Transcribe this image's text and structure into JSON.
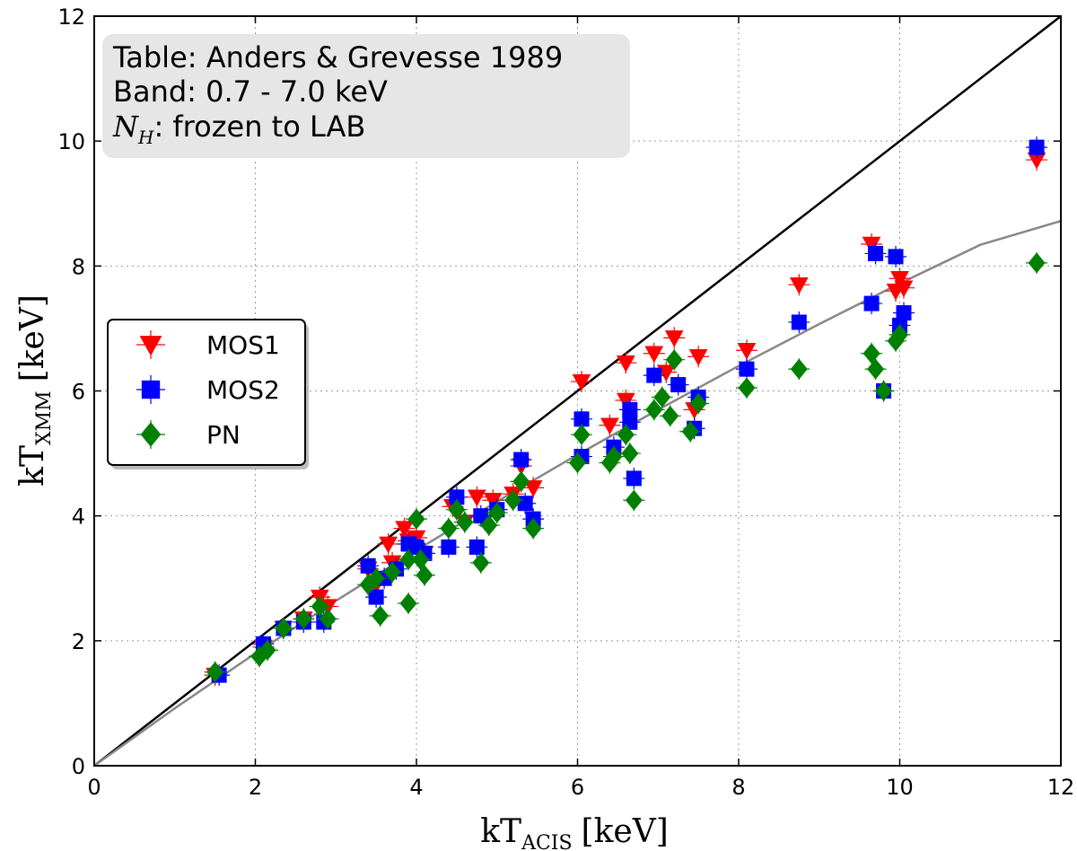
{
  "chart_data": {
    "type": "scatter",
    "xlabel": {
      "main": "kT",
      "sub": "ACIS",
      "unit": "[keV]"
    },
    "ylabel": {
      "main": "kT",
      "sub": "XMM",
      "unit": "[keV]"
    },
    "xlim": [
      0,
      12
    ],
    "ylim": [
      0,
      12
    ],
    "xticks": [
      "0",
      "2",
      "4",
      "6",
      "8",
      "10",
      "12"
    ],
    "yticks": [
      "0",
      "2",
      "4",
      "6",
      "8",
      "10",
      "12"
    ],
    "grid": true,
    "legend_position": "center-left",
    "annotation": {
      "line1": "Table: Anders & Grevesse 1989",
      "line2": "Band: 0.7 - 7.0 keV",
      "line3_symbol": "N",
      "line3_sub": "H",
      "line3_text": ": frozen to LAB"
    },
    "reference_lines": [
      {
        "kind": "identity",
        "color": "#000000",
        "points": [
          [
            0,
            0
          ],
          [
            12,
            12
          ]
        ]
      },
      {
        "kind": "fit",
        "color": "#888888",
        "points": [
          [
            0,
            0
          ],
          [
            1,
            0.92
          ],
          [
            2,
            1.8
          ],
          [
            3,
            2.64
          ],
          [
            4,
            3.45
          ],
          [
            5,
            4.23
          ],
          [
            6,
            4.98
          ],
          [
            7,
            5.7
          ],
          [
            8,
            6.4
          ],
          [
            9,
            7.07
          ],
          [
            10,
            7.72
          ],
          [
            11,
            8.34
          ],
          [
            12,
            8.72
          ]
        ]
      }
    ],
    "series": [
      {
        "name": "MOS1",
        "marker": "triangle-down",
        "color": "#ff0000",
        "points": [
          {
            "x": 1.5,
            "y": 1.45
          },
          {
            "x": 2.1,
            "y": 1.9
          },
          {
            "x": 2.35,
            "y": 2.2
          },
          {
            "x": 2.6,
            "y": 2.35
          },
          {
            "x": 2.8,
            "y": 2.7
          },
          {
            "x": 2.9,
            "y": 2.55
          },
          {
            "x": 3.4,
            "y": 3.15
          },
          {
            "x": 3.5,
            "y": 2.9
          },
          {
            "x": 3.65,
            "y": 3.55
          },
          {
            "x": 3.7,
            "y": 3.25
          },
          {
            "x": 3.85,
            "y": 3.8
          },
          {
            "x": 3.9,
            "y": 3.6
          },
          {
            "x": 4.0,
            "y": 3.65
          },
          {
            "x": 4.1,
            "y": 3.4
          },
          {
            "x": 4.45,
            "y": 4.15
          },
          {
            "x": 4.6,
            "y": 3.9
          },
          {
            "x": 4.75,
            "y": 4.3
          },
          {
            "x": 4.95,
            "y": 4.25
          },
          {
            "x": 5.2,
            "y": 4.35
          },
          {
            "x": 5.3,
            "y": 4.8
          },
          {
            "x": 5.45,
            "y": 4.45
          },
          {
            "x": 6.05,
            "y": 6.15
          },
          {
            "x": 6.4,
            "y": 5.45
          },
          {
            "x": 6.6,
            "y": 6.45
          },
          {
            "x": 6.6,
            "y": 5.85
          },
          {
            "x": 6.95,
            "y": 6.6
          },
          {
            "x": 7.1,
            "y": 6.3
          },
          {
            "x": 7.2,
            "y": 6.85
          },
          {
            "x": 7.45,
            "y": 5.7
          },
          {
            "x": 7.5,
            "y": 6.55
          },
          {
            "x": 8.1,
            "y": 6.65
          },
          {
            "x": 8.75,
            "y": 7.7
          },
          {
            "x": 9.65,
            "y": 8.35
          },
          {
            "x": 9.95,
            "y": 7.6
          },
          {
            "x": 10.0,
            "y": 7.8
          },
          {
            "x": 10.05,
            "y": 7.65
          },
          {
            "x": 11.7,
            "y": 9.7
          }
        ]
      },
      {
        "name": "MOS2",
        "marker": "square",
        "color": "#0000ff",
        "points": [
          {
            "x": 1.55,
            "y": 1.45
          },
          {
            "x": 2.1,
            "y": 1.95
          },
          {
            "x": 2.35,
            "y": 2.2
          },
          {
            "x": 2.6,
            "y": 2.3
          },
          {
            "x": 2.85,
            "y": 2.3
          },
          {
            "x": 3.4,
            "y": 3.2
          },
          {
            "x": 3.5,
            "y": 2.7
          },
          {
            "x": 3.6,
            "y": 3.0
          },
          {
            "x": 3.75,
            "y": 3.15
          },
          {
            "x": 3.9,
            "y": 3.55
          },
          {
            "x": 4.0,
            "y": 3.5
          },
          {
            "x": 4.1,
            "y": 3.4
          },
          {
            "x": 4.4,
            "y": 3.5
          },
          {
            "x": 4.5,
            "y": 4.3
          },
          {
            "x": 4.75,
            "y": 3.5
          },
          {
            "x": 4.8,
            "y": 4.0
          },
          {
            "x": 5.0,
            "y": 4.1
          },
          {
            "x": 5.3,
            "y": 4.9
          },
          {
            "x": 5.35,
            "y": 4.2
          },
          {
            "x": 5.45,
            "y": 3.95
          },
          {
            "x": 6.05,
            "y": 5.55
          },
          {
            "x": 6.05,
            "y": 4.95
          },
          {
            "x": 6.45,
            "y": 5.1
          },
          {
            "x": 6.65,
            "y": 5.7
          },
          {
            "x": 6.65,
            "y": 5.5
          },
          {
            "x": 6.7,
            "y": 4.6
          },
          {
            "x": 6.95,
            "y": 6.25
          },
          {
            "x": 7.25,
            "y": 6.1
          },
          {
            "x": 7.5,
            "y": 5.9
          },
          {
            "x": 7.45,
            "y": 5.4
          },
          {
            "x": 8.1,
            "y": 6.35
          },
          {
            "x": 8.75,
            "y": 7.1
          },
          {
            "x": 9.65,
            "y": 7.4
          },
          {
            "x": 9.7,
            "y": 8.2
          },
          {
            "x": 9.95,
            "y": 8.15
          },
          {
            "x": 10.0,
            "y": 7.05
          },
          {
            "x": 10.05,
            "y": 7.25
          },
          {
            "x": 9.8,
            "y": 6.0
          },
          {
            "x": 11.7,
            "y": 9.9
          }
        ]
      },
      {
        "name": "PN",
        "marker": "diamond",
        "color": "#008000",
        "points": [
          {
            "x": 1.5,
            "y": 1.5
          },
          {
            "x": 2.05,
            "y": 1.75
          },
          {
            "x": 2.15,
            "y": 1.85
          },
          {
            "x": 2.35,
            "y": 2.2
          },
          {
            "x": 2.6,
            "y": 2.35
          },
          {
            "x": 2.8,
            "y": 2.55
          },
          {
            "x": 2.9,
            "y": 2.35
          },
          {
            "x": 3.4,
            "y": 2.9
          },
          {
            "x": 3.5,
            "y": 3.0
          },
          {
            "x": 3.55,
            "y": 2.4
          },
          {
            "x": 3.7,
            "y": 3.1
          },
          {
            "x": 3.9,
            "y": 2.6
          },
          {
            "x": 3.9,
            "y": 3.3
          },
          {
            "x": 4.0,
            "y": 3.95
          },
          {
            "x": 4.05,
            "y": 3.3
          },
          {
            "x": 4.1,
            "y": 3.05
          },
          {
            "x": 4.4,
            "y": 3.8
          },
          {
            "x": 4.5,
            "y": 4.1
          },
          {
            "x": 4.6,
            "y": 3.9
          },
          {
            "x": 4.8,
            "y": 3.25
          },
          {
            "x": 4.9,
            "y": 3.85
          },
          {
            "x": 5.0,
            "y": 4.05
          },
          {
            "x": 5.2,
            "y": 4.25
          },
          {
            "x": 5.3,
            "y": 4.55
          },
          {
            "x": 5.45,
            "y": 3.8
          },
          {
            "x": 6.0,
            "y": 4.85
          },
          {
            "x": 6.05,
            "y": 5.3
          },
          {
            "x": 6.4,
            "y": 4.85
          },
          {
            "x": 6.45,
            "y": 4.95
          },
          {
            "x": 6.6,
            "y": 5.3
          },
          {
            "x": 6.65,
            "y": 5.0
          },
          {
            "x": 6.7,
            "y": 4.25
          },
          {
            "x": 6.95,
            "y": 5.7
          },
          {
            "x": 7.05,
            "y": 5.9
          },
          {
            "x": 7.15,
            "y": 5.6
          },
          {
            "x": 7.2,
            "y": 6.5
          },
          {
            "x": 7.4,
            "y": 5.35
          },
          {
            "x": 7.5,
            "y": 5.8
          },
          {
            "x": 8.1,
            "y": 6.05
          },
          {
            "x": 8.75,
            "y": 6.35
          },
          {
            "x": 9.65,
            "y": 6.6
          },
          {
            "x": 9.7,
            "y": 6.35
          },
          {
            "x": 9.8,
            "y": 6.0
          },
          {
            "x": 9.95,
            "y": 6.8
          },
          {
            "x": 10.0,
            "y": 6.9
          },
          {
            "x": 11.7,
            "y": 8.05
          }
        ]
      }
    ]
  }
}
